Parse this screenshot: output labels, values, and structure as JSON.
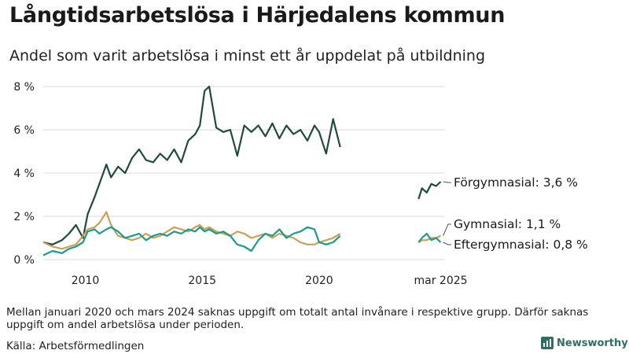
{
  "title": "Långtidsarbetslösa i Härjedalens kommun",
  "subtitle": "Andel som varit arbetslösa i minst ett år uppdelat på utbildning",
  "note": "Mellan januari 2020 och mars 2024 saknas uppgift om totalt antal invånare i respektive grupp. Därför saknas uppgift om andel arbetslösa under perioden.",
  "source": "Källa: Arbetsförmedlingen",
  "brand": "Newsworthy",
  "chart_data": {
    "type": "line",
    "title": "Långtidsarbetslösa i Härjedalens kommun",
    "ylim": [
      0,
      8
    ],
    "y_ticks": [
      0,
      2,
      4,
      6,
      8
    ],
    "y_tick_labels": [
      "0 %",
      "2 %",
      "4 %",
      "6 %",
      "8 %"
    ],
    "x_tick_labels": [
      "2010",
      "2015",
      "2020",
      "mar 2025"
    ],
    "grid": true,
    "series": [
      {
        "name": "Förgymnasial",
        "label": "Förgymnasial: 3,6 %",
        "color": "#1f4a3d",
        "x": [
          2008.2,
          2008.6,
          2009.0,
          2009.3,
          2009.6,
          2009.9,
          2010.1,
          2010.4,
          2010.6,
          2010.9,
          2011.1,
          2011.4,
          2011.7,
          2012.0,
          2012.3,
          2012.6,
          2012.9,
          2013.2,
          2013.5,
          2013.8,
          2014.1,
          2014.4,
          2014.7,
          2014.9,
          2015.1,
          2015.3,
          2015.6,
          2015.9,
          2016.2,
          2016.5,
          2016.8,
          2017.1,
          2017.4,
          2017.7,
          2018.0,
          2018.3,
          2018.6,
          2018.9,
          2019.2,
          2019.5,
          2019.8,
          2020.0,
          2020.3,
          2020.6,
          2020.9
        ],
        "y": [
          0.8,
          0.7,
          0.9,
          1.2,
          1.6,
          1.0,
          2.1,
          2.9,
          3.5,
          4.4,
          3.8,
          4.3,
          4.0,
          4.7,
          5.1,
          4.6,
          4.5,
          4.9,
          4.6,
          5.1,
          4.5,
          5.5,
          5.8,
          6.2,
          7.8,
          8.0,
          6.1,
          5.9,
          6.0,
          4.8,
          6.2,
          5.9,
          6.2,
          5.7,
          6.3,
          5.6,
          6.2,
          5.8,
          6.0,
          5.5,
          6.2,
          5.9,
          4.9,
          6.5,
          5.2
        ]
      },
      {
        "name": "Förgymnasial",
        "color": "#1f4a3d",
        "x": [
          2024.25,
          2024.4,
          2024.6,
          2024.8,
          2025.0,
          2025.2
        ],
        "y": [
          2.8,
          3.3,
          3.1,
          3.5,
          3.4,
          3.6
        ]
      },
      {
        "name": "Gymnasial",
        "label": "Gymnasial: 1,1 %",
        "color": "#c9a055",
        "x": [
          2008.2,
          2008.6,
          2009.0,
          2009.3,
          2009.6,
          2009.9,
          2010.1,
          2010.4,
          2010.6,
          2010.9,
          2011.1,
          2011.4,
          2011.7,
          2012.0,
          2012.3,
          2012.6,
          2012.9,
          2013.2,
          2013.5,
          2013.8,
          2014.1,
          2014.4,
          2014.7,
          2014.9,
          2015.1,
          2015.3,
          2015.6,
          2015.9,
          2016.2,
          2016.5,
          2016.8,
          2017.1,
          2017.4,
          2017.7,
          2018.0,
          2018.3,
          2018.6,
          2018.9,
          2019.2,
          2019.5,
          2019.8,
          2020.0,
          2020.3,
          2020.6,
          2020.9
        ],
        "y": [
          0.8,
          0.6,
          0.5,
          0.6,
          0.7,
          1.1,
          1.4,
          1.5,
          1.7,
          2.2,
          1.6,
          1.1,
          1.0,
          0.9,
          1.0,
          1.2,
          1.0,
          1.1,
          1.3,
          1.5,
          1.4,
          1.3,
          1.5,
          1.6,
          1.4,
          1.5,
          1.3,
          1.2,
          1.1,
          1.3,
          1.2,
          1.0,
          1.1,
          1.2,
          1.0,
          1.2,
          1.1,
          1.0,
          0.8,
          0.7,
          0.7,
          0.8,
          0.9,
          1.0,
          1.2
        ]
      },
      {
        "name": "Gymnasial",
        "color": "#c9a055",
        "x": [
          2024.25,
          2024.4,
          2024.6,
          2024.8,
          2025.0,
          2025.2
        ],
        "y": [
          0.8,
          0.9,
          0.9,
          1.0,
          1.0,
          1.1
        ]
      },
      {
        "name": "Eftergymnasial",
        "label": "Eftergymnasial: 0,8 %",
        "color": "#1a9a8e",
        "x": [
          2008.2,
          2008.6,
          2009.0,
          2009.3,
          2009.6,
          2009.9,
          2010.1,
          2010.4,
          2010.6,
          2010.9,
          2011.1,
          2011.4,
          2011.7,
          2012.0,
          2012.3,
          2012.6,
          2012.9,
          2013.2,
          2013.5,
          2013.8,
          2014.1,
          2014.4,
          2014.7,
          2014.9,
          2015.1,
          2015.3,
          2015.6,
          2015.9,
          2016.2,
          2016.5,
          2016.8,
          2017.1,
          2017.4,
          2017.7,
          2018.0,
          2018.3,
          2018.6,
          2018.9,
          2019.2,
          2019.5,
          2019.8,
          2020.0,
          2020.3,
          2020.6,
          2020.9
        ],
        "y": [
          0.2,
          0.4,
          0.3,
          0.5,
          0.6,
          0.8,
          1.3,
          1.4,
          1.2,
          1.4,
          1.5,
          1.3,
          1.0,
          1.1,
          1.2,
          0.9,
          1.1,
          1.2,
          1.1,
          1.3,
          1.2,
          1.4,
          1.3,
          1.5,
          1.3,
          1.4,
          1.2,
          1.3,
          1.1,
          0.7,
          0.6,
          0.4,
          0.9,
          1.2,
          1.1,
          1.4,
          1.0,
          1.2,
          1.3,
          1.5,
          1.4,
          0.8,
          0.7,
          0.8,
          1.1
        ]
      },
      {
        "name": "Eftergymnasial",
        "color": "#1a9a8e",
        "x": [
          2024.25,
          2024.4,
          2024.6,
          2024.8,
          2025.0,
          2025.2
        ],
        "y": [
          0.8,
          1.0,
          1.2,
          0.9,
          1.0,
          0.8
        ]
      }
    ]
  }
}
